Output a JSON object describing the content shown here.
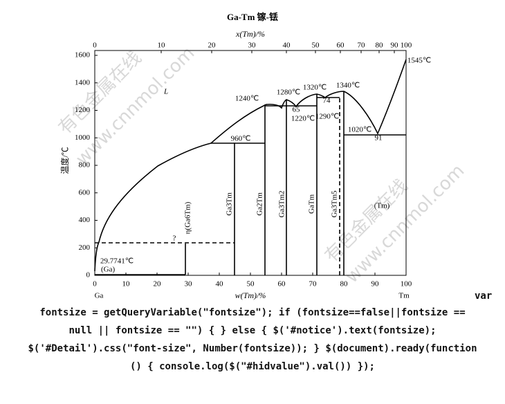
{
  "title": "Ga-Tm  镓-铥",
  "top_axis": {
    "label": "x(Tm)/%",
    "ticks": [
      0,
      10,
      20,
      30,
      40,
      50,
      60,
      70,
      80,
      90,
      100
    ]
  },
  "bottom_axis": {
    "label": "w(Tm)/%",
    "ticks": [
      0,
      10,
      20,
      30,
      40,
      50,
      60,
      70,
      80,
      90,
      100
    ],
    "left_end": "Ga",
    "right_end": "Tm"
  },
  "y_axis": {
    "label": "温度/℃",
    "ticks": [
      0,
      200,
      400,
      600,
      800,
      1000,
      1200,
      1400,
      1600
    ]
  },
  "annotations": [
    "L",
    "1240℃",
    "1280℃",
    "1320℃",
    "1340℃",
    "1545℃",
    "960℃",
    "65",
    "1220℃",
    "74",
    "1290℃",
    "1020℃",
    "91",
    "29.7741℃",
    "(Ga)",
    "?",
    "(Tm)"
  ],
  "phases": [
    "η(Ga6Tm)",
    "Ga3Tm",
    "Ga2Tm",
    "Ga3Tm2",
    "GaTm",
    "Ga3Tm5"
  ],
  "watermarks": [
    "有色金属在线",
    "www.cnnmol.com",
    "有色金属在线",
    "www.cnnmol.com"
  ],
  "code_lines": [
    "var",
    "fontsize = getQueryVariable(\"fontsize\"); if (fontsize==false||fontsize ==",
    "null || fontsize == \"\") { } else { $('#notice').text(fontsize);",
    "$('#Detail').css(\"font-size\", Number(fontsize)); } $(document).ready(function",
    "() { console.log($(\"#hidvalue\").val()) });"
  ]
}
